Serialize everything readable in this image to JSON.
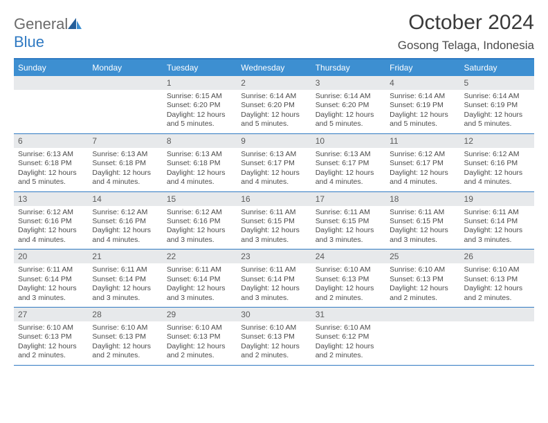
{
  "brand": {
    "name_part1": "General",
    "name_part2": "Blue"
  },
  "title": "October 2024",
  "location": "Gosong Telaga, Indonesia",
  "colors": {
    "header_bg": "#3d8fd1",
    "rule": "#2f79c2",
    "daynum_bg": "#e7e9eb",
    "text": "#4a4a4a",
    "logo_blue": "#2f79c2"
  },
  "typography": {
    "title_fontsize": 30,
    "location_fontsize": 17,
    "dayheader_fontsize": 12,
    "body_fontsize": 10.5
  },
  "day_headers": [
    "Sunday",
    "Monday",
    "Tuesday",
    "Wednesday",
    "Thursday",
    "Friday",
    "Saturday"
  ],
  "weeks": [
    [
      null,
      null,
      {
        "n": "1",
        "sr": "Sunrise: 6:15 AM",
        "ss": "Sunset: 6:20 PM",
        "dl": "Daylight: 12 hours and 5 minutes."
      },
      {
        "n": "2",
        "sr": "Sunrise: 6:14 AM",
        "ss": "Sunset: 6:20 PM",
        "dl": "Daylight: 12 hours and 5 minutes."
      },
      {
        "n": "3",
        "sr": "Sunrise: 6:14 AM",
        "ss": "Sunset: 6:20 PM",
        "dl": "Daylight: 12 hours and 5 minutes."
      },
      {
        "n": "4",
        "sr": "Sunrise: 6:14 AM",
        "ss": "Sunset: 6:19 PM",
        "dl": "Daylight: 12 hours and 5 minutes."
      },
      {
        "n": "5",
        "sr": "Sunrise: 6:14 AM",
        "ss": "Sunset: 6:19 PM",
        "dl": "Daylight: 12 hours and 5 minutes."
      }
    ],
    [
      {
        "n": "6",
        "sr": "Sunrise: 6:13 AM",
        "ss": "Sunset: 6:18 PM",
        "dl": "Daylight: 12 hours and 5 minutes."
      },
      {
        "n": "7",
        "sr": "Sunrise: 6:13 AM",
        "ss": "Sunset: 6:18 PM",
        "dl": "Daylight: 12 hours and 4 minutes."
      },
      {
        "n": "8",
        "sr": "Sunrise: 6:13 AM",
        "ss": "Sunset: 6:18 PM",
        "dl": "Daylight: 12 hours and 4 minutes."
      },
      {
        "n": "9",
        "sr": "Sunrise: 6:13 AM",
        "ss": "Sunset: 6:17 PM",
        "dl": "Daylight: 12 hours and 4 minutes."
      },
      {
        "n": "10",
        "sr": "Sunrise: 6:13 AM",
        "ss": "Sunset: 6:17 PM",
        "dl": "Daylight: 12 hours and 4 minutes."
      },
      {
        "n": "11",
        "sr": "Sunrise: 6:12 AM",
        "ss": "Sunset: 6:17 PM",
        "dl": "Daylight: 12 hours and 4 minutes."
      },
      {
        "n": "12",
        "sr": "Sunrise: 6:12 AM",
        "ss": "Sunset: 6:16 PM",
        "dl": "Daylight: 12 hours and 4 minutes."
      }
    ],
    [
      {
        "n": "13",
        "sr": "Sunrise: 6:12 AM",
        "ss": "Sunset: 6:16 PM",
        "dl": "Daylight: 12 hours and 4 minutes."
      },
      {
        "n": "14",
        "sr": "Sunrise: 6:12 AM",
        "ss": "Sunset: 6:16 PM",
        "dl": "Daylight: 12 hours and 4 minutes."
      },
      {
        "n": "15",
        "sr": "Sunrise: 6:12 AM",
        "ss": "Sunset: 6:16 PM",
        "dl": "Daylight: 12 hours and 3 minutes."
      },
      {
        "n": "16",
        "sr": "Sunrise: 6:11 AM",
        "ss": "Sunset: 6:15 PM",
        "dl": "Daylight: 12 hours and 3 minutes."
      },
      {
        "n": "17",
        "sr": "Sunrise: 6:11 AM",
        "ss": "Sunset: 6:15 PM",
        "dl": "Daylight: 12 hours and 3 minutes."
      },
      {
        "n": "18",
        "sr": "Sunrise: 6:11 AM",
        "ss": "Sunset: 6:15 PM",
        "dl": "Daylight: 12 hours and 3 minutes."
      },
      {
        "n": "19",
        "sr": "Sunrise: 6:11 AM",
        "ss": "Sunset: 6:14 PM",
        "dl": "Daylight: 12 hours and 3 minutes."
      }
    ],
    [
      {
        "n": "20",
        "sr": "Sunrise: 6:11 AM",
        "ss": "Sunset: 6:14 PM",
        "dl": "Daylight: 12 hours and 3 minutes."
      },
      {
        "n": "21",
        "sr": "Sunrise: 6:11 AM",
        "ss": "Sunset: 6:14 PM",
        "dl": "Daylight: 12 hours and 3 minutes."
      },
      {
        "n": "22",
        "sr": "Sunrise: 6:11 AM",
        "ss": "Sunset: 6:14 PM",
        "dl": "Daylight: 12 hours and 3 minutes."
      },
      {
        "n": "23",
        "sr": "Sunrise: 6:11 AM",
        "ss": "Sunset: 6:14 PM",
        "dl": "Daylight: 12 hours and 3 minutes."
      },
      {
        "n": "24",
        "sr": "Sunrise: 6:10 AM",
        "ss": "Sunset: 6:13 PM",
        "dl": "Daylight: 12 hours and 2 minutes."
      },
      {
        "n": "25",
        "sr": "Sunrise: 6:10 AM",
        "ss": "Sunset: 6:13 PM",
        "dl": "Daylight: 12 hours and 2 minutes."
      },
      {
        "n": "26",
        "sr": "Sunrise: 6:10 AM",
        "ss": "Sunset: 6:13 PM",
        "dl": "Daylight: 12 hours and 2 minutes."
      }
    ],
    [
      {
        "n": "27",
        "sr": "Sunrise: 6:10 AM",
        "ss": "Sunset: 6:13 PM",
        "dl": "Daylight: 12 hours and 2 minutes."
      },
      {
        "n": "28",
        "sr": "Sunrise: 6:10 AM",
        "ss": "Sunset: 6:13 PM",
        "dl": "Daylight: 12 hours and 2 minutes."
      },
      {
        "n": "29",
        "sr": "Sunrise: 6:10 AM",
        "ss": "Sunset: 6:13 PM",
        "dl": "Daylight: 12 hours and 2 minutes."
      },
      {
        "n": "30",
        "sr": "Sunrise: 6:10 AM",
        "ss": "Sunset: 6:13 PM",
        "dl": "Daylight: 12 hours and 2 minutes."
      },
      {
        "n": "31",
        "sr": "Sunrise: 6:10 AM",
        "ss": "Sunset: 6:12 PM",
        "dl": "Daylight: 12 hours and 2 minutes."
      },
      null,
      null
    ]
  ]
}
